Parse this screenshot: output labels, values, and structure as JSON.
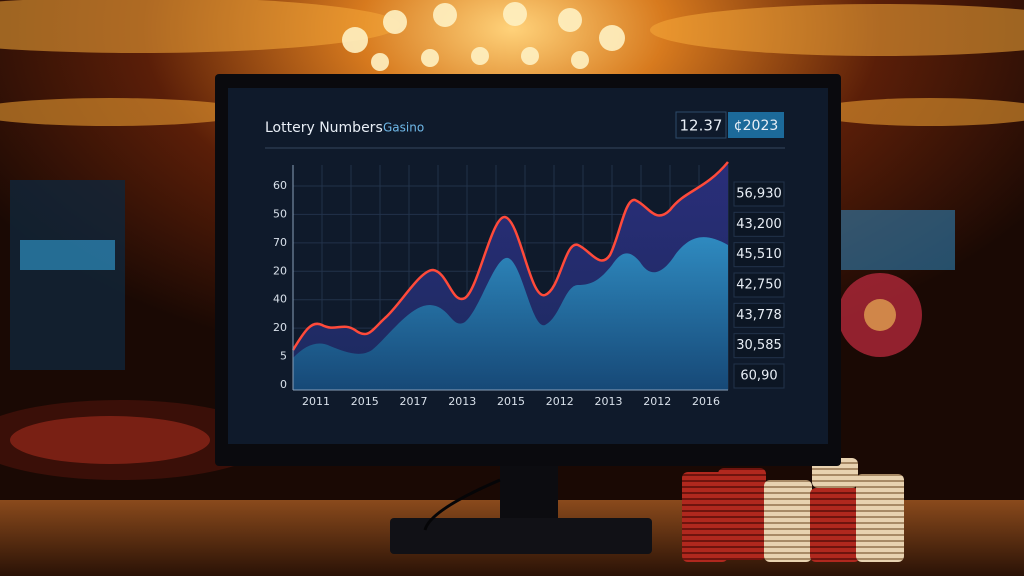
{
  "screen": {
    "title": "Lottery Numbers",
    "subtitle": "Gasino",
    "header_values": [
      "12.37",
      "¢2023"
    ],
    "y_labels": [
      "60",
      "50",
      "70",
      "20",
      "40",
      "20",
      "5",
      "0"
    ],
    "x_labels": [
      "2011",
      "2015",
      "2017",
      "2013",
      "2015",
      "2012",
      "2013",
      "2012",
      "2016"
    ],
    "side_values": [
      "56,930",
      "43,200",
      "45,510",
      "42,750",
      "43,778",
      "30,585",
      "60,90"
    ]
  }
}
